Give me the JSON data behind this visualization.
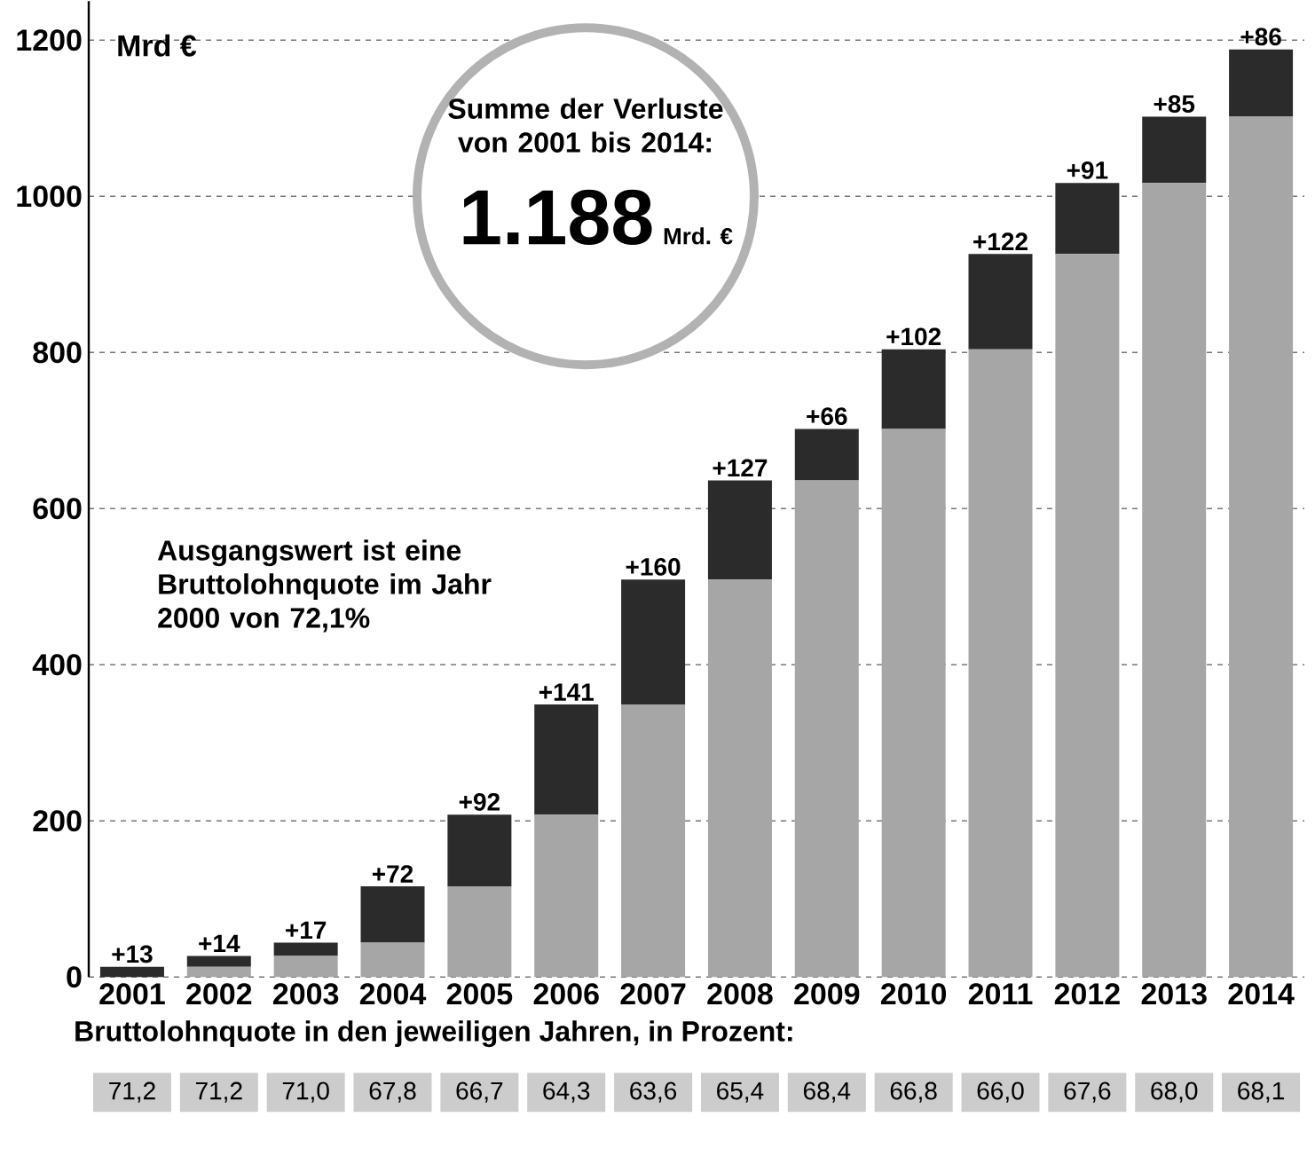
{
  "chart_data": {
    "type": "bar",
    "stacked": true,
    "ylabel": "Mrd €",
    "categories": [
      "2001",
      "2002",
      "2003",
      "2004",
      "2005",
      "2006",
      "2007",
      "2008",
      "2009",
      "2010",
      "2011",
      "2012",
      "2013",
      "2014"
    ],
    "series": [
      {
        "color": "#a6a6a6",
        "values": [
          0,
          13,
          27,
          44,
          116,
          208,
          349,
          509,
          636,
          702,
          804,
          926,
          1017,
          1102
        ]
      },
      {
        "color": "#2b2b2b",
        "values": [
          13,
          14,
          17,
          72,
          92,
          141,
          160,
          127,
          66,
          102,
          122,
          91,
          85,
          86
        ],
        "value_labels": [
          "+13",
          "+14",
          "+17",
          "+72",
          "+92",
          "+141",
          "+160",
          "+127",
          "+66",
          "+102",
          "+122",
          "+91",
          "+85",
          "+86"
        ]
      }
    ],
    "ylim": [
      0,
      1250
    ],
    "yticks": [
      0,
      200,
      400,
      600,
      800,
      1000,
      1200
    ],
    "grid": "y",
    "annotations": [
      "Summe der Verluste von 2001 bis 2014:",
      "1.188",
      "Mrd. €",
      "Ausgangswert ist eine Bruttolohnquote im Jahr 2000 von 72,1%",
      "Bruttolohnquote in den jeweiligen Jahren, in Prozent:",
      "71,2",
      "71,2",
      "71,0",
      "67,8",
      "66,7",
      "64,3",
      "63,6",
      "65,4",
      "68,4",
      "66,8",
      "66,0",
      "67,6",
      "68,0",
      "68,1"
    ]
  }
}
